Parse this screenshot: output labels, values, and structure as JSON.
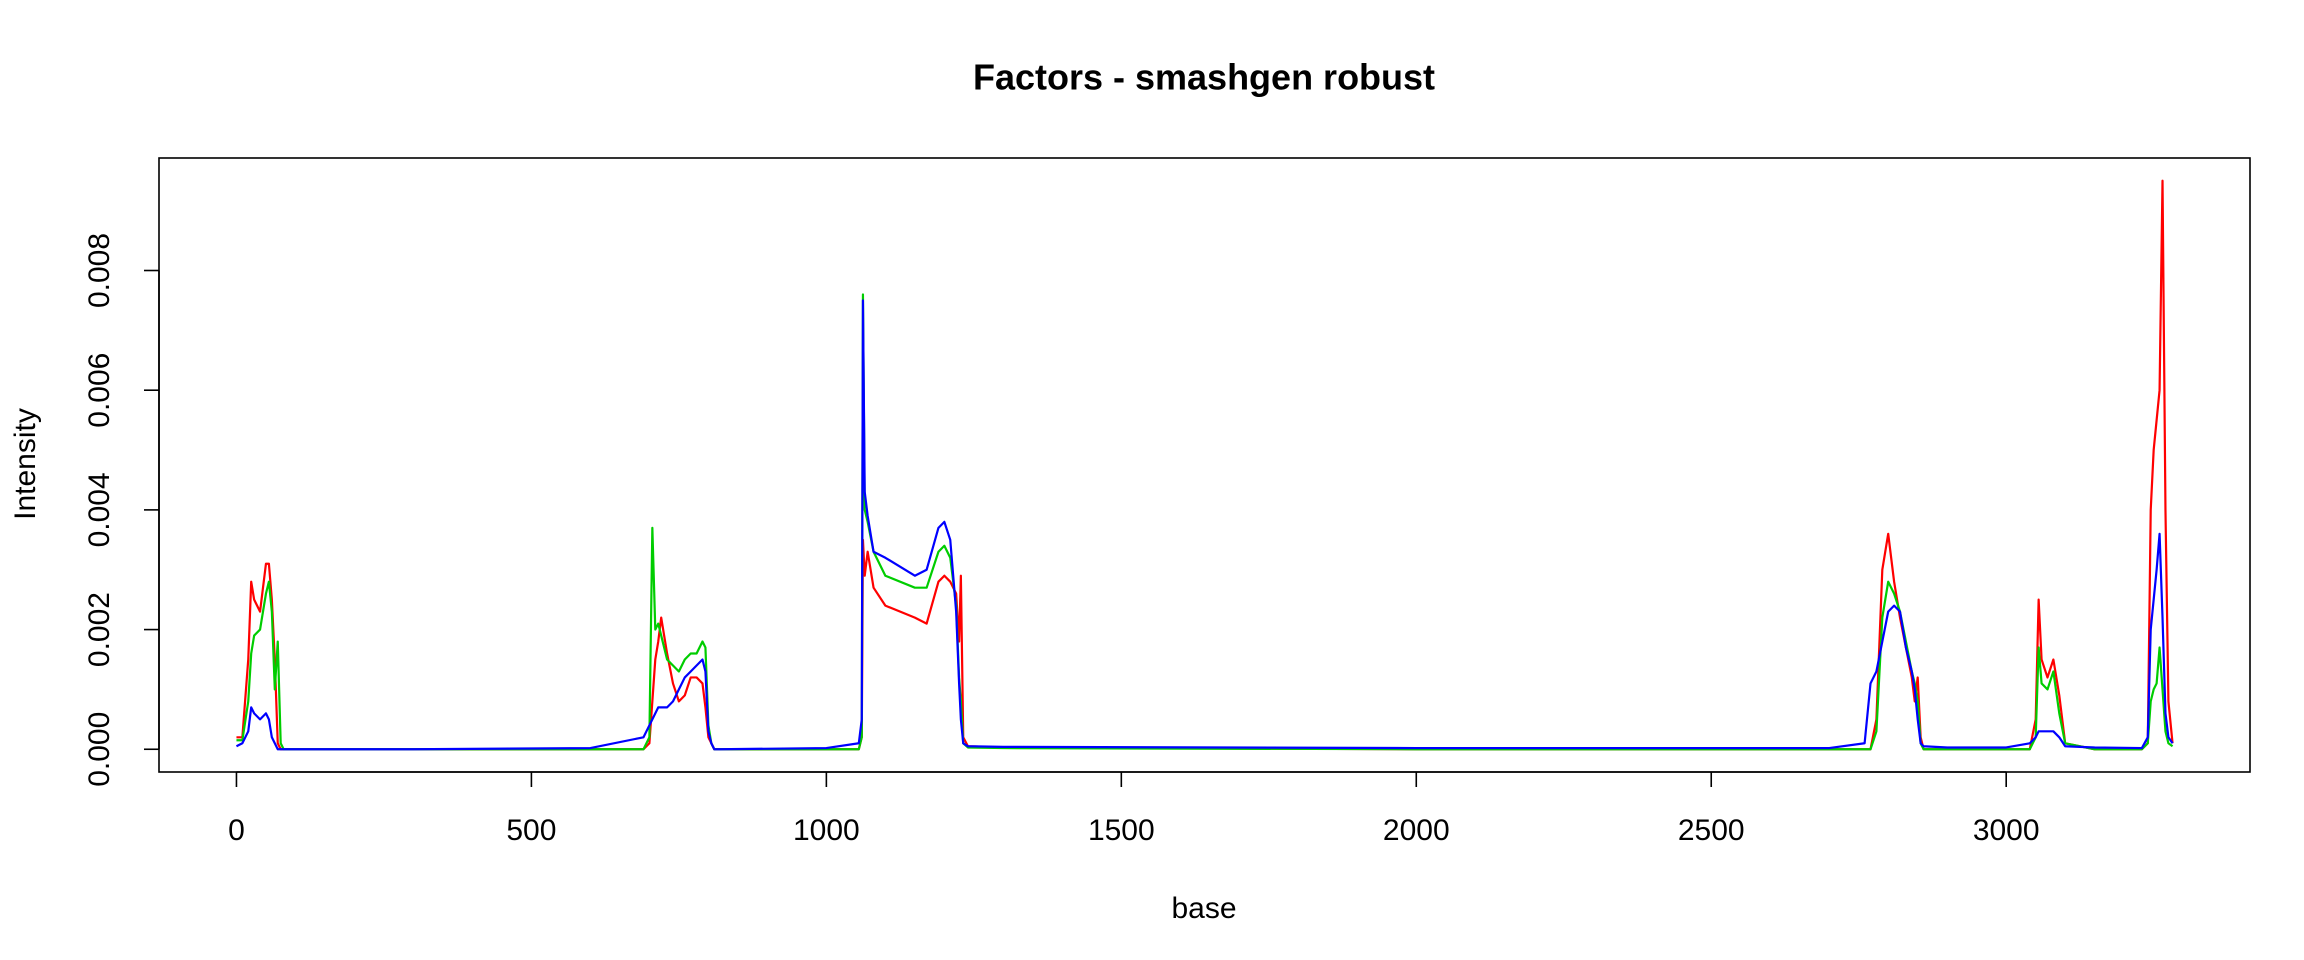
{
  "chart_data": {
    "type": "line",
    "title": "Factors - smashgen robust",
    "x_label": "base",
    "y_label": "Intensity",
    "x": [
      0,
      10,
      20,
      25,
      30,
      40,
      50,
      55,
      60,
      65,
      70,
      75,
      80,
      100,
      300,
      600,
      690,
      700,
      705,
      710,
      715,
      720,
      730,
      740,
      750,
      760,
      770,
      780,
      790,
      795,
      800,
      805,
      810,
      820,
      1000,
      1055,
      1060,
      1062,
      1065,
      1070,
      1080,
      1100,
      1150,
      1170,
      1190,
      1200,
      1210,
      1220,
      1225,
      1228,
      1232,
      1240,
      1300,
      2000,
      2700,
      2760,
      2770,
      2780,
      2790,
      2800,
      2810,
      2820,
      2830,
      2840,
      2845,
      2850,
      2855,
      2860,
      2900,
      3000,
      3040,
      3050,
      3055,
      3060,
      3070,
      3080,
      3090,
      3100,
      3150,
      3230,
      3240,
      3245,
      3250,
      3255,
      3260,
      3265,
      3270,
      3275,
      3282
    ],
    "series": [
      {
        "color": "#ff0000",
        "values": [
          0.0002,
          0.0002,
          0.0015,
          0.0028,
          0.0025,
          0.0023,
          0.0031,
          0.0031,
          0.0025,
          0.0015,
          0.0001,
          0,
          0,
          0,
          0,
          0,
          0,
          0.0001,
          0.0008,
          0.0015,
          0.0018,
          0.0022,
          0.0016,
          0.0011,
          0.0008,
          0.0009,
          0.0012,
          0.0012,
          0.0011,
          0.0007,
          0.0002,
          0.0001,
          0,
          0,
          0,
          0,
          0.0002,
          0.0035,
          0.0029,
          0.0033,
          0.0027,
          0.0024,
          0.0022,
          0.0021,
          0.0028,
          0.0029,
          0.0028,
          0.0026,
          0.0018,
          0.0029,
          0.0002,
          5e-05,
          3e-05,
          0,
          0,
          0,
          0,
          0.0005,
          0.003,
          0.0036,
          0.0028,
          0.0022,
          0.0017,
          0.0012,
          0.0008,
          0.0012,
          0.0002,
          0,
          0,
          0,
          0,
          0.0005,
          0.0025,
          0.0015,
          0.0012,
          0.0015,
          0.0009,
          0.0001,
          0,
          0,
          0.0001,
          0.004,
          0.005,
          0.0055,
          0.006,
          0.0095,
          0.004,
          0.0008,
          0.0001
        ]
      },
      {
        "color": "#00cd00",
        "values": [
          0.00015,
          0.00015,
          0.0008,
          0.0016,
          0.0019,
          0.002,
          0.0026,
          0.0028,
          0.0023,
          0.001,
          0.0018,
          0.0001,
          0,
          0,
          0,
          0,
          0,
          0.0002,
          0.0037,
          0.002,
          0.0021,
          0.0019,
          0.0015,
          0.0014,
          0.0013,
          0.0015,
          0.0016,
          0.0016,
          0.0018,
          0.0017,
          0.0004,
          0.0001,
          0,
          0,
          0,
          0,
          0.0002,
          0.0076,
          0.004,
          0.0038,
          0.0033,
          0.0029,
          0.0027,
          0.0027,
          0.0033,
          0.0034,
          0.0032,
          0.0024,
          0.0012,
          0.0008,
          0.0001,
          3e-05,
          2e-05,
          0,
          0,
          0,
          0,
          0.0003,
          0.0022,
          0.0028,
          0.0026,
          0.0023,
          0.0018,
          0.0013,
          0.0011,
          0.0008,
          0.0001,
          0,
          0,
          0,
          0,
          0.0002,
          0.0017,
          0.0011,
          0.001,
          0.0013,
          0.0006,
          0.0001,
          0,
          0,
          0.0001,
          0.0008,
          0.001,
          0.0011,
          0.0017,
          0.001,
          0.0003,
          0.0001,
          5e-05
        ]
      },
      {
        "color": "#0000ff",
        "values": [
          5e-05,
          0.0001,
          0.0003,
          0.0007,
          0.0006,
          0.0005,
          0.0006,
          0.0005,
          0.0002,
          0.0001,
          0,
          0,
          0,
          0,
          0,
          2e-05,
          0.0002,
          0.0004,
          0.0005,
          0.0006,
          0.0007,
          0.0007,
          0.0007,
          0.0008,
          0.001,
          0.0012,
          0.0013,
          0.0014,
          0.0015,
          0.0013,
          0.0003,
          0.0001,
          0,
          0,
          2e-05,
          0.0001,
          0.0005,
          0.0075,
          0.0043,
          0.0039,
          0.0033,
          0.0032,
          0.0029,
          0.003,
          0.0037,
          0.0038,
          0.0035,
          0.0023,
          0.0011,
          0.0005,
          0.0001,
          5e-05,
          4e-05,
          2e-05,
          2e-05,
          0.0001,
          0.0011,
          0.0013,
          0.0018,
          0.0023,
          0.0024,
          0.0023,
          0.0017,
          0.0013,
          0.001,
          0.0005,
          0.0001,
          5e-05,
          3e-05,
          3e-05,
          0.0001,
          0.0002,
          0.0003,
          0.0003,
          0.0003,
          0.0003,
          0.0002,
          5e-05,
          3e-05,
          2e-05,
          0.0002,
          0.002,
          0.0025,
          0.003,
          0.0036,
          0.0022,
          0.0006,
          0.0002,
          0.0001
        ]
      }
    ],
    "xlim": [
      -131.3,
      3413.3
    ],
    "ylim": [
      -0.00038,
      0.00988
    ],
    "xticks": [
      0,
      500,
      1000,
      1500,
      2000,
      2500,
      3000
    ],
    "yticks": [
      {
        "value": 0,
        "label": "0.000"
      },
      {
        "value": 0.002,
        "label": "0.002"
      },
      {
        "value": 0.004,
        "label": "0.004"
      },
      {
        "value": 0.006,
        "label": "0.006"
      },
      {
        "value": 0.008,
        "label": "0.008"
      }
    ],
    "grid": false
  }
}
